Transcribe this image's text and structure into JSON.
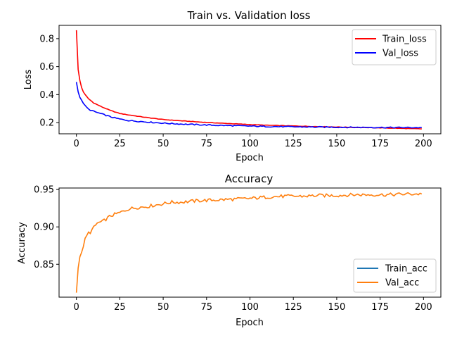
{
  "chart_data": [
    {
      "type": "line",
      "title": "Train vs. Validation loss",
      "xlabel": "Epoch",
      "ylabel": "Loss",
      "xlim": [
        -10,
        210
      ],
      "ylim": [
        0.12,
        0.895
      ],
      "xticks": [
        "0",
        "25",
        "50",
        "75",
        "100",
        "125",
        "150",
        "175",
        "200"
      ],
      "yticks": [
        "0.2",
        "0.4",
        "0.6",
        "0.8"
      ],
      "grid": false,
      "legend": "upper right",
      "series": [
        {
          "name": "Train_loss",
          "color": "#ff0000",
          "points": [
            [
              0,
              0.86
            ],
            [
              1,
              0.58
            ],
            [
              2,
              0.5
            ],
            [
              3,
              0.45
            ],
            [
              4,
              0.42
            ],
            [
              5,
              0.4
            ],
            [
              7,
              0.37
            ],
            [
              10,
              0.34
            ],
            [
              15,
              0.31
            ],
            [
              20,
              0.285
            ],
            [
              25,
              0.265
            ],
            [
              30,
              0.255
            ],
            [
              40,
              0.237
            ],
            [
              50,
              0.222
            ],
            [
              60,
              0.213
            ],
            [
              70,
              0.205
            ],
            [
              80,
              0.198
            ],
            [
              90,
              0.192
            ],
            [
              100,
              0.186
            ],
            [
              110,
              0.181
            ],
            [
              125,
              0.176
            ],
            [
              140,
              0.171
            ],
            [
              160,
              0.166
            ],
            [
              180,
              0.161
            ],
            [
              199,
              0.155
            ]
          ]
        },
        {
          "name": "Val_loss",
          "color": "#0000ff",
          "points": [
            [
              0,
              0.49
            ],
            [
              1,
              0.42
            ],
            [
              2,
              0.38
            ],
            [
              3,
              0.36
            ],
            [
              4,
              0.34
            ],
            [
              5,
              0.32
            ],
            [
              7,
              0.295
            ],
            [
              10,
              0.28
            ],
            [
              15,
              0.26
            ],
            [
              20,
              0.24
            ],
            [
              25,
              0.225
            ],
            [
              30,
              0.215
            ],
            [
              40,
              0.205
            ],
            [
              50,
              0.196
            ],
            [
              60,
              0.19
            ],
            [
              70,
              0.185
            ],
            [
              80,
              0.181
            ],
            [
              90,
              0.178
            ],
            [
              100,
              0.175
            ],
            [
              110,
              0.172
            ],
            [
              125,
              0.17
            ],
            [
              140,
              0.168
            ],
            [
              160,
              0.166
            ],
            [
              180,
              0.165
            ],
            [
              199,
              0.164
            ]
          ]
        }
      ]
    },
    {
      "type": "line",
      "title": "Accuracy",
      "xlabel": "Epoch",
      "ylabel": "Accuracy",
      "xlim": [
        -10,
        210
      ],
      "ylim": [
        0.806,
        0.952
      ],
      "xticks": [
        "0",
        "25",
        "50",
        "75",
        "100",
        "125",
        "150",
        "175",
        "200"
      ],
      "yticks": [
        "0.85",
        "0.90",
        "0.95"
      ],
      "grid": false,
      "legend": "lower right",
      "series": [
        {
          "name": "Train_acc",
          "color": "#1f77b4",
          "points": []
        },
        {
          "name": "Val_acc",
          "color": "#ff7f0e",
          "points": [
            [
              0,
              0.812
            ],
            [
              1,
              0.845
            ],
            [
              2,
              0.86
            ],
            [
              3,
              0.866
            ],
            [
              4,
              0.875
            ],
            [
              5,
              0.883
            ],
            [
              6,
              0.888
            ],
            [
              7,
              0.892
            ],
            [
              8,
              0.893
            ],
            [
              10,
              0.899
            ],
            [
              12,
              0.905
            ],
            [
              15,
              0.907
            ],
            [
              18,
              0.912
            ],
            [
              20,
              0.915
            ],
            [
              25,
              0.919
            ],
            [
              30,
              0.924
            ],
            [
              35,
              0.926
            ],
            [
              40,
              0.927
            ],
            [
              45,
              0.929
            ],
            [
              50,
              0.931
            ],
            [
              55,
              0.933
            ],
            [
              60,
              0.933
            ],
            [
              70,
              0.935
            ],
            [
              80,
              0.936
            ],
            [
              90,
              0.937
            ],
            [
              100,
              0.938
            ],
            [
              110,
              0.94
            ],
            [
              120,
              0.941
            ],
            [
              130,
              0.941
            ],
            [
              140,
              0.942
            ],
            [
              150,
              0.942
            ],
            [
              160,
              0.943
            ],
            [
              170,
              0.943
            ],
            [
              180,
              0.943
            ],
            [
              190,
              0.944
            ],
            [
              199,
              0.944
            ]
          ]
        }
      ]
    }
  ]
}
